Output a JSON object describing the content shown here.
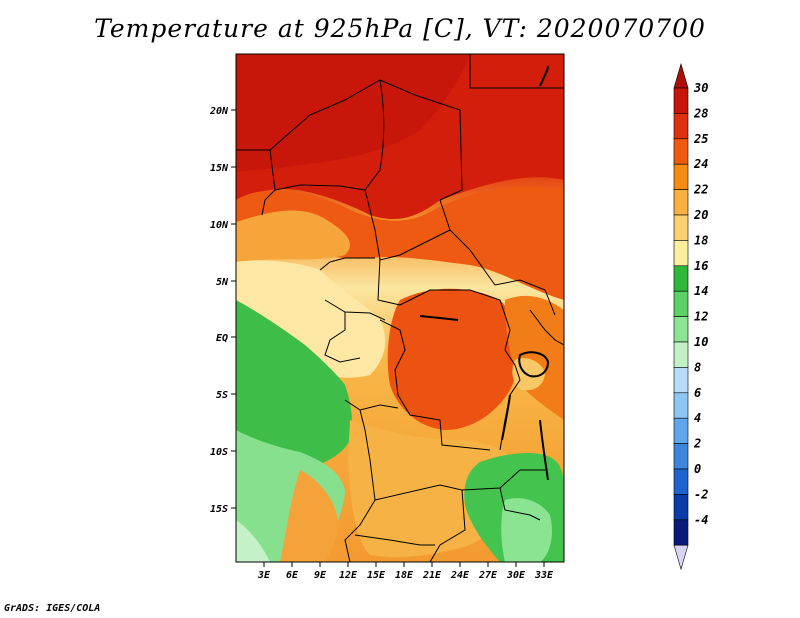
{
  "title": "Temperature at 925hPa [C], VT: 2020070700",
  "footer": "GrADS: IGES/COLA",
  "map": {
    "lat_labels": [
      "20N",
      "15N",
      "10N",
      "5N",
      "EQ",
      "5S",
      "10S",
      "15S"
    ],
    "lon_labels": [
      "3E",
      "6E",
      "9E",
      "12E",
      "15E",
      "18E",
      "21E",
      "24E",
      "27E",
      "30E",
      "33E"
    ]
  },
  "colorbar": {
    "labels": [
      "30",
      "28",
      "25",
      "24",
      "22",
      "20",
      "18",
      "16",
      "14",
      "12",
      "10",
      "8",
      "6",
      "4",
      "2",
      "0",
      "-2",
      "-4"
    ],
    "colors": [
      "#c8150a",
      "#e1300e",
      "#ef5a0e",
      "#f58b10",
      "#f8b040",
      "#fad070",
      "#fcee9c",
      "#2fb83a",
      "#5cd165",
      "#8ae492",
      "#c2f2c4",
      "#b7dcf8",
      "#8ec8f2",
      "#5fa7ea",
      "#3c86dc",
      "#1f63cf",
      "#0c3caa",
      "#0a1a7a"
    ],
    "arrow_top_color": "#b00c08",
    "arrow_bottom_color": "#d8d4f4"
  }
}
